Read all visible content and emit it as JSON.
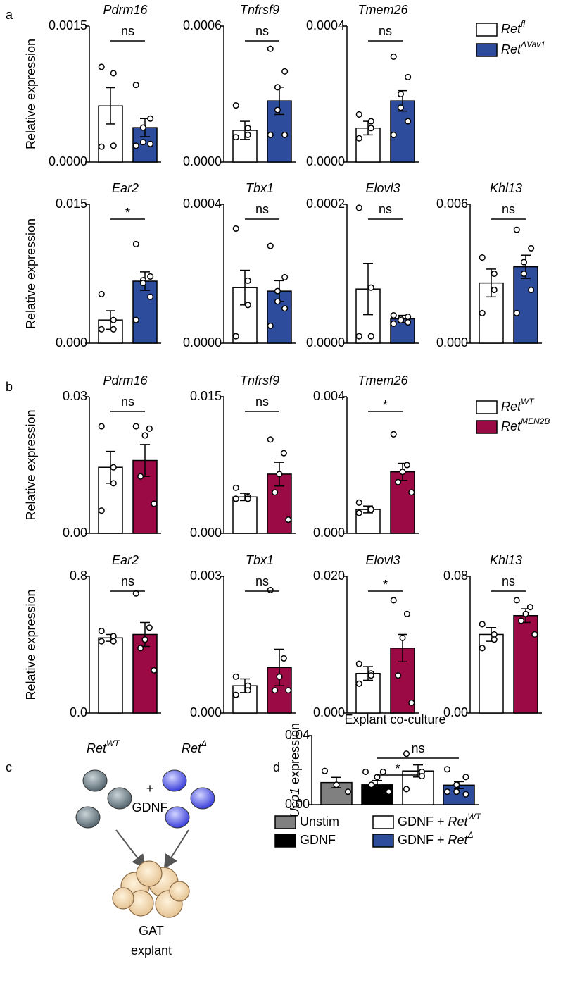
{
  "panel_labels": [
    "a",
    "b",
    "c",
    "d"
  ],
  "legends": [
    {
      "entries": [
        {
          "color": "#ffffff",
          "parts": [
            {
              "text": "Ret",
              "style": "italic"
            },
            {
              "text": "fl",
              "style": "sup"
            }
          ]
        },
        {
          "color": "#2e4c9c",
          "parts": [
            {
              "text": "Ret",
              "style": "italic"
            },
            {
              "text": "ΔVav1",
              "style": "sup"
            }
          ]
        }
      ]
    },
    {
      "entries": [
        {
          "color": "#ffffff",
          "parts": [
            {
              "text": "Ret",
              "style": "italic"
            },
            {
              "text": "WT",
              "style": "sup"
            }
          ]
        },
        {
          "color": "#9b0a45",
          "parts": [
            {
              "text": "Ret",
              "style": "italic"
            },
            {
              "text": "MEN2B",
              "style": "sup"
            }
          ]
        }
      ]
    },
    {
      "entries": [
        {
          "color": "#808080",
          "parts": [
            {
              "text": "Unstim",
              "style": "normal"
            }
          ]
        },
        {
          "color": "#000000",
          "parts": [
            {
              "text": "GDNF",
              "style": "normal"
            }
          ]
        },
        {
          "color": "#ffffff",
          "parts": [
            {
              "text": "GDNF + ",
              "style": "normal"
            },
            {
              "text": "Ret",
              "style": "italic"
            },
            {
              "text": "WT",
              "style": "sup"
            }
          ]
        },
        {
          "color": "#2e4c9c",
          "parts": [
            {
              "text": "GDNF + ",
              "style": "normal"
            },
            {
              "text": "Ret",
              "style": "italic"
            },
            {
              "text": "Δ",
              "style": "sup"
            }
          ]
        }
      ]
    }
  ],
  "diagram": {
    "cell_groups": [
      {
        "parts": [
          {
            "text": "Ret",
            "style": "italic"
          },
          {
            "text": "WT",
            "style": "sup"
          }
        ]
      },
      {
        "parts": [
          {
            "text": "Ret",
            "style": "italic"
          },
          {
            "text": "Δ",
            "style": "sup"
          }
        ]
      }
    ],
    "plus": "+",
    "stimulus": "GDNF",
    "explant": [
      "GAT",
      "explant"
    ]
  },
  "chart_data": [
    {
      "type": "bar",
      "title": "Pdrm16",
      "title_italic": true,
      "y_label": [
        {
          "text": "Relative expression",
          "style": "normal"
        }
      ],
      "categories": [
        null,
        null
      ],
      "colors": [
        "#ffffff",
        "#2e4c9c"
      ],
      "values": [
        0.00062,
        0.00038
      ],
      "errors": [
        0.0002,
        0.0001
      ],
      "points": [
        [
          0.00105,
          0.00098,
          0.00018,
          0.00017
        ],
        [
          0.00085,
          0.00048,
          0.00038,
          0.00022,
          0.0002,
          0.00018
        ]
      ],
      "ylim": [
        0,
        0.0015
      ],
      "yticks": [
        {
          "value": 0,
          "label": "0.0000"
        },
        0.0015
      ],
      "annotations": [
        {
          "text": "ns",
          "from": 0,
          "to": 1
        }
      ]
    },
    {
      "type": "bar",
      "title": "Tnfrsf9",
      "title_italic": true,
      "categories": [
        null,
        null
      ],
      "colors": [
        "#ffffff",
        "#2e4c9c"
      ],
      "values": [
        0.00014,
        0.00027
      ],
      "errors": [
        4e-05,
        6e-05
      ],
      "points": [
        [
          0.00025,
          0.00015,
          0.00012,
          0.00011
        ],
        [
          0.0005,
          0.0004,
          0.00033,
          0.00023,
          0.00012,
          0.00012
        ]
      ],
      "ylim": [
        0,
        0.0006
      ],
      "yticks": [
        {
          "value": 0,
          "label": "0.0000"
        },
        0.0006
      ],
      "annotations": [
        {
          "text": "ns",
          "from": 0,
          "to": 1
        }
      ]
    },
    {
      "type": "bar",
      "title": "Tmem26",
      "title_italic": true,
      "categories": [
        null,
        null
      ],
      "colors": [
        "#ffffff",
        "#2e4c9c"
      ],
      "values": [
        0.0001,
        0.00018
      ],
      "errors": [
        2e-05,
        3e-05
      ],
      "points": [
        [
          0.00014,
          0.00012,
          0.0001,
          7e-05
        ],
        [
          0.00031,
          0.00025,
          0.0002,
          0.00016,
          0.00012,
          8e-05
        ]
      ],
      "ylim": [
        0,
        0.0004
      ],
      "yticks": [
        {
          "value": 0,
          "label": "0.0000"
        },
        0.0004
      ],
      "annotations": [
        {
          "text": "ns",
          "from": 0,
          "to": 1
        }
      ]
    },
    {
      "type": "bar",
      "title": "Ear2",
      "title_italic": true,
      "y_label": [
        {
          "text": "Relative expression",
          "style": "normal"
        }
      ],
      "categories": [
        null,
        null
      ],
      "colors": [
        "#ffffff",
        "#2e4c9c"
      ],
      "values": [
        0.0025,
        0.0067
      ],
      "errors": [
        0.001,
        0.001
      ],
      "points": [
        [
          0.0053,
          0.0025,
          0.0015,
          0.0015
        ],
        [
          0.0107,
          0.0072,
          0.0068,
          0.0065,
          0.005,
          0.0025
        ]
      ],
      "ylim": [
        0,
        0.015
      ],
      "yticks": [
        {
          "value": 0,
          "label": "0.000"
        },
        0.015
      ],
      "annotations": [
        {
          "text": "*",
          "from": 0,
          "to": 1
        }
      ]
    },
    {
      "type": "bar",
      "title": "Tbx1",
      "title_italic": true,
      "categories": [
        null,
        null
      ],
      "colors": [
        "#ffffff",
        "#2e4c9c"
      ],
      "values": [
        0.00016,
        0.00015
      ],
      "errors": [
        5e-05,
        3e-05
      ],
      "points": [
        [
          0.00033,
          0.00018,
          0.00011,
          2e-05
        ],
        [
          0.00028,
          0.00019,
          0.00015,
          0.00012,
          0.0001,
          5e-05
        ]
      ],
      "ylim": [
        0,
        0.0004
      ],
      "yticks": [
        {
          "value": 0,
          "label": "0.0000"
        },
        0.0004
      ],
      "annotations": [
        {
          "text": "ns",
          "from": 0,
          "to": 1
        }
      ]
    },
    {
      "type": "bar",
      "title": "Elovl3",
      "title_italic": true,
      "categories": [
        null,
        null
      ],
      "colors": [
        "#ffffff",
        "#2e4c9c"
      ],
      "values": [
        7.8e-05,
        3.5e-05
      ],
      "errors": [
        3.7e-05,
        5e-06
      ],
      "points": [
        [
          0.000195,
          8e-05,
          1e-05,
          1e-05
        ],
        [
          4e-05,
          3.8e-05,
          3.5e-05,
          3.3e-05,
          3e-05,
          2.8e-05
        ]
      ],
      "ylim": [
        0,
        0.0002
      ],
      "yticks": [
        {
          "value": 0,
          "label": "0.0000"
        },
        0.0002
      ],
      "annotations": [
        {
          "text": "ns",
          "from": 0,
          "to": 1
        }
      ]
    },
    {
      "type": "bar",
      "title": "Khl13",
      "title_italic": true,
      "categories": [
        null,
        null
      ],
      "colors": [
        "#ffffff",
        "#2e4c9c"
      ],
      "values": [
        0.0026,
        0.0033
      ],
      "errors": [
        0.0006,
        0.0005
      ],
      "points": [
        [
          0.0037,
          0.003,
          0.0023,
          0.0013
        ],
        [
          0.0049,
          0.0041,
          0.0035,
          0.003,
          0.0023,
          0.0013
        ]
      ],
      "ylim": [
        0,
        0.006
      ],
      "yticks": [
        {
          "value": 0,
          "label": "0.000"
        },
        0.006
      ],
      "annotations": [
        {
          "text": "ns",
          "from": 0,
          "to": 1
        }
      ]
    },
    {
      "type": "bar",
      "title": "Pdrm16",
      "title_italic": true,
      "y_label": [
        {
          "text": "Relative expression",
          "style": "normal"
        }
      ],
      "categories": [
        null,
        null
      ],
      "colors": [
        "#ffffff",
        "#9b0a45"
      ],
      "values": [
        0.0145,
        0.016
      ],
      "errors": [
        0.0035,
        0.0035
      ],
      "points": [
        [
          0.0235,
          0.0145,
          0.011,
          0.005
        ],
        [
          0.0235,
          0.023,
          0.0215,
          0.0125,
          0.0065
        ]
      ],
      "ylim": [
        0,
        0.03
      ],
      "yticks": [
        {
          "value": 0,
          "label": "0.00"
        },
        0.03
      ],
      "annotations": [
        {
          "text": "ns",
          "from": 0,
          "to": 1
        }
      ]
    },
    {
      "type": "bar",
      "title": "Tnfrsf9",
      "title_italic": true,
      "categories": [
        null,
        null
      ],
      "colors": [
        "#ffffff",
        "#9b0a45"
      ],
      "values": [
        0.004,
        0.0065
      ],
      "errors": [
        0.0004,
        0.0013
      ],
      "points": [
        [
          0.005,
          0.004,
          0.0038,
          0.0038
        ],
        [
          0.0103,
          0.0088,
          0.0065,
          0.0045,
          0.0015
        ]
      ],
      "ylim": [
        0,
        0.015
      ],
      "yticks": [
        {
          "value": 0,
          "label": "0.000"
        },
        0.015
      ],
      "annotations": [
        {
          "text": "ns",
          "from": 0,
          "to": 1
        }
      ]
    },
    {
      "type": "bar",
      "title": "Tmem26",
      "title_italic": true,
      "categories": [
        null,
        null
      ],
      "colors": [
        "#ffffff",
        "#9b0a45"
      ],
      "values": [
        0.0007,
        0.0018
      ],
      "errors": [
        0.0001,
        0.00025
      ],
      "points": [
        [
          0.0009,
          0.0007,
          0.0007,
          0.0006
        ],
        [
          0.0029,
          0.002,
          0.0018,
          0.0015,
          0.0012
        ]
      ],
      "ylim": [
        0,
        0.004
      ],
      "yticks": [
        {
          "value": 0,
          "label": "0.000"
        },
        0.004
      ],
      "annotations": [
        {
          "text": "*",
          "from": 0,
          "to": 1
        }
      ]
    },
    {
      "type": "bar",
      "title": "Ear2",
      "title_italic": true,
      "y_label": [
        {
          "text": "Relative expression",
          "style": "normal"
        }
      ],
      "categories": [
        null,
        null
      ],
      "colors": [
        "#ffffff",
        "#9b0a45"
      ],
      "values": [
        0.44,
        0.46
      ],
      "errors": [
        0.02,
        0.07
      ],
      "points": [
        [
          0.48,
          0.45,
          0.42,
          0.42
        ],
        [
          0.7,
          0.5,
          0.43,
          0.38,
          0.25
        ]
      ],
      "ylim": [
        0,
        0.8
      ],
      "yticks": [
        {
          "value": 0,
          "label": "0.0"
        },
        0.8
      ],
      "annotations": [
        {
          "text": "ns",
          "from": 0,
          "to": 1
        }
      ]
    },
    {
      "type": "bar",
      "title": "Tbx1",
      "title_italic": true,
      "categories": [
        null,
        null
      ],
      "colors": [
        "#ffffff",
        "#9b0a45"
      ],
      "values": [
        0.0006,
        0.001
      ],
      "errors": [
        0.00015,
        0.0004
      ],
      "points": [
        [
          0.0008,
          0.0006,
          0.0005,
          0.0004
        ],
        [
          0.0027,
          0.0012,
          0.0008,
          0.0005,
          0.0005
        ]
      ],
      "ylim": [
        0,
        0.003
      ],
      "yticks": [
        {
          "value": 0,
          "label": "0.000"
        },
        0.003
      ],
      "annotations": [
        {
          "text": "ns",
          "from": 0,
          "to": 1
        }
      ]
    },
    {
      "type": "bar",
      "title": "Elovl3",
      "title_italic": true,
      "categories": [
        null,
        null
      ],
      "colors": [
        "#ffffff",
        "#9b0a45"
      ],
      "values": [
        0.0058,
        0.0095
      ],
      "errors": [
        0.001,
        0.002
      ],
      "points": [
        [
          0.0072,
          0.0058,
          0.0055,
          0.0043
        ],
        [
          0.0165,
          0.0145,
          0.011,
          0.0055,
          0.0015
        ]
      ],
      "ylim": [
        0,
        0.02
      ],
      "yticks": [
        {
          "value": 0,
          "label": "0.000"
        },
        {
          "value": 0.02,
          "label": "0.020"
        }
      ],
      "annotations": [
        {
          "text": "*",
          "from": 0,
          "to": 1
        }
      ]
    },
    {
      "type": "bar",
      "title": "Khl13",
      "title_italic": true,
      "categories": [
        null,
        null
      ],
      "colors": [
        "#ffffff",
        "#9b0a45"
      ],
      "values": [
        0.046,
        0.057
      ],
      "errors": [
        0.004,
        0.004
      ],
      "points": [
        [
          0.052,
          0.046,
          0.043,
          0.038
        ],
        [
          0.066,
          0.062,
          0.058,
          0.054,
          0.046
        ]
      ],
      "ylim": [
        0,
        0.08
      ],
      "yticks": [
        {
          "value": 0,
          "label": "0.00"
        },
        0.08
      ],
      "annotations": [
        {
          "text": "ns",
          "from": 0,
          "to": 1
        }
      ]
    },
    {
      "type": "bar",
      "title": "Explant co-culture",
      "title_italic": false,
      "y_label": [
        {
          "text": "Ucp1",
          "style": "italic"
        },
        {
          "text": " expression",
          "style": "normal"
        }
      ],
      "categories": [
        null,
        null,
        null,
        null
      ],
      "colors": [
        "#808080",
        "#000000",
        "#ffffff",
        "#2e4c9c"
      ],
      "values": [
        0.0128,
        0.0115,
        0.0195,
        0.0113
      ],
      "errors": [
        0.003,
        0.0025,
        0.0035,
        0.002
      ],
      "points": [
        [
          0.0195,
          0.0115,
          0.0075
        ],
        [
          0.019,
          0.019,
          0.016,
          0.0115,
          0.0075
        ],
        [
          0.0295,
          0.019,
          0.0165,
          0.009
        ],
        [
          0.0205,
          0.016,
          0.0115,
          0.0075,
          0.006,
          0.0075
        ]
      ],
      "ylim": [
        0,
        0.04
      ],
      "yticks": [
        {
          "value": 0,
          "label": "0.00"
        },
        0.04
      ],
      "annotations": [
        {
          "text": "*",
          "from": 1,
          "to": 2
        },
        {
          "text": "ns",
          "from": 1,
          "to": 3
        }
      ]
    }
  ]
}
